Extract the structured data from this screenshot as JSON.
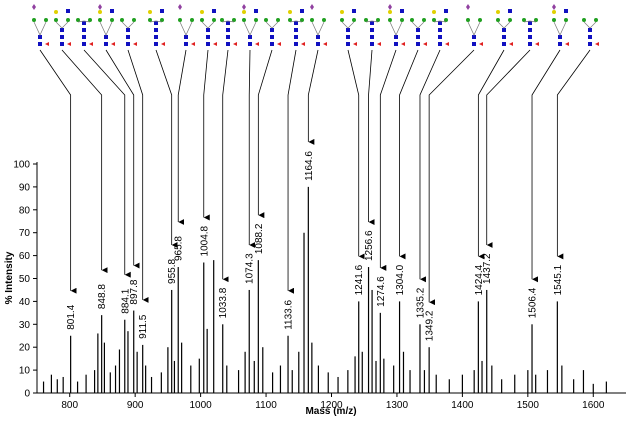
{
  "chart_data": {
    "type": "spectrum",
    "x_label": "Mass (m/z)",
    "y_label": "% Intensity",
    "xlim": [
      750,
      1650
    ],
    "ylim": [
      0,
      100
    ],
    "xticks": [
      800,
      900,
      1000,
      1100,
      1200,
      1300,
      1400,
      1500,
      1600
    ],
    "yticks": [
      0,
      10,
      20,
      30,
      40,
      50,
      60,
      70,
      80,
      90,
      100
    ],
    "color": "#000000",
    "x": [
      760,
      772,
      781,
      790,
      801.4,
      812,
      825,
      838,
      843,
      848.8,
      853,
      862,
      870,
      876,
      884.1,
      889,
      897.8,
      903,
      911.5,
      916,
      925,
      940,
      950,
      955.8,
      960,
      965.8,
      971,
      985,
      998,
      1004.8,
      1010,
      1020,
      1033.8,
      1040,
      1058,
      1068,
      1074.3,
      1082,
      1088.2,
      1095,
      1110,
      1122,
      1133.6,
      1140,
      1150,
      1158,
      1164.6,
      1170,
      1180,
      1195,
      1210,
      1225,
      1236,
      1241.6,
      1247,
      1256.6,
      1262,
      1268,
      1274.6,
      1280,
      1295,
      1304,
      1310,
      1320,
      1335.2,
      1342,
      1349.2,
      1360,
      1380,
      1400,
      1418,
      1424.4,
      1430,
      1437.2,
      1445,
      1460,
      1480,
      1500,
      1506.4,
      1512,
      1530,
      1545.1,
      1552,
      1570,
      1585,
      1600,
      1620
    ],
    "values": [
      5,
      8,
      6,
      7,
      25,
      5,
      8,
      10,
      26,
      34,
      22,
      9,
      12,
      19,
      32,
      27,
      36,
      18,
      21,
      12,
      7,
      9,
      20,
      45,
      14,
      55,
      22,
      12,
      15,
      57,
      28,
      58,
      30,
      12,
      10,
      18,
      45,
      14,
      58,
      20,
      9,
      12,
      25,
      10,
      18,
      70,
      90,
      22,
      12,
      9,
      7,
      10,
      16,
      40,
      18,
      55,
      45,
      14,
      35,
      15,
      12,
      40,
      18,
      10,
      30,
      10,
      20,
      8,
      6,
      8,
      10,
      40,
      14,
      45,
      12,
      6,
      8,
      10,
      30,
      8,
      10,
      40,
      12,
      6,
      10,
      4,
      5
    ],
    "annotations": [
      {
        "label": "801.4",
        "x": 801.4
      },
      {
        "label": "848.8",
        "x": 848.8
      },
      {
        "label": "884.1",
        "x": 884.1
      },
      {
        "label": "897.8",
        "x": 897.8
      },
      {
        "label": "911.5",
        "x": 911.5
      },
      {
        "label": "955.8",
        "x": 955.8
      },
      {
        "label": "965.8",
        "x": 965.8
      },
      {
        "label": "1004.8",
        "x": 1004.8
      },
      {
        "label": "1033.8",
        "x": 1033.8
      },
      {
        "label": "1074.3",
        "x": 1074.3
      },
      {
        "label": "1088.2",
        "x": 1088.2
      },
      {
        "label": "1133.6",
        "x": 1133.6
      },
      {
        "label": "1164.6",
        "x": 1164.6
      },
      {
        "label": "1241.6",
        "x": 1241.6
      },
      {
        "label": "1256.6",
        "x": 1256.6
      },
      {
        "label": "1274.6",
        "x": 1274.6
      },
      {
        "label": "1304.0",
        "x": 1304
      },
      {
        "label": "1335.2",
        "x": 1335.2
      },
      {
        "label": "1349.2",
        "x": 1349.2
      },
      {
        "label": "1424.4",
        "x": 1424.4
      },
      {
        "label": "1437.2",
        "x": 1437.2
      },
      {
        "label": "1506.4",
        "x": 1506.4
      },
      {
        "label": "1545.1",
        "x": 1545.1
      }
    ]
  }
}
